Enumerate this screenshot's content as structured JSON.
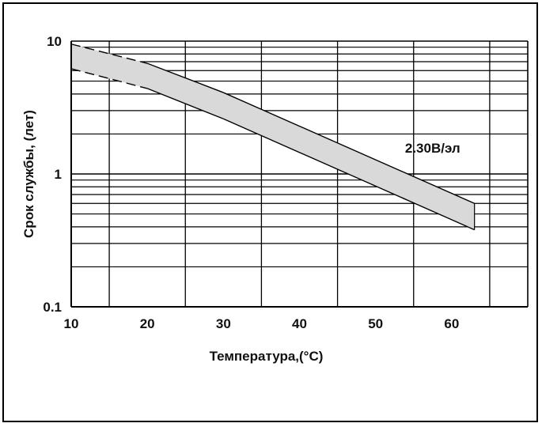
{
  "chart_data": {
    "type": "area",
    "title": "",
    "xlabel": "Температура,(°C)",
    "ylabel": "Срок службы, (лет)",
    "x_scale": "linear",
    "y_scale": "log",
    "xlim": [
      5,
      65
    ],
    "ylim": [
      0.1,
      10
    ],
    "x_ticks": [
      10,
      20,
      30,
      40,
      50,
      60
    ],
    "x_tick_labels": [
      "10",
      "20",
      "30",
      "40",
      "50",
      "60"
    ],
    "y_ticks": [
      0.1,
      1,
      10
    ],
    "y_tick_labels": [
      "0.1",
      "1",
      "10"
    ],
    "grid": true,
    "band": {
      "x": [
        5,
        15,
        25,
        58
      ],
      "upper": [
        9.5,
        6.8,
        4.1,
        0.6
      ],
      "lower": [
        6.2,
        4.4,
        2.6,
        0.38
      ],
      "fill_color": "#d9d9d9",
      "line_color": "#000000"
    },
    "annotations": [
      {
        "text": "2.30В/эл",
        "x": 52.5,
        "y": 1.45
      }
    ]
  }
}
